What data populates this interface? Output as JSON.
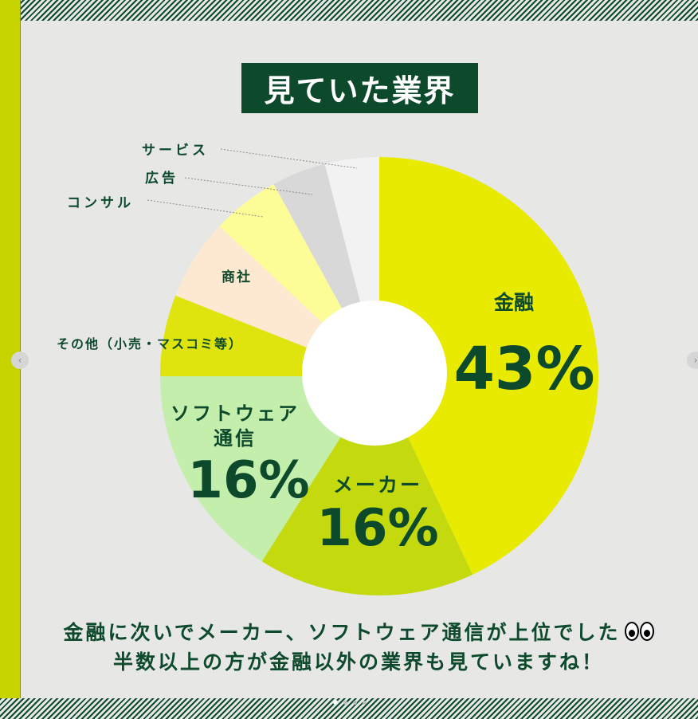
{
  "title": "見ていた業界",
  "chart_data": {
    "type": "pie",
    "title": "見ていた業界",
    "slices": [
      {
        "label": "金融",
        "value": 43,
        "display": "43%",
        "color": "#e8ea00"
      },
      {
        "label": "メーカー",
        "value": 16,
        "display": "16%",
        "color": "#c4da0e"
      },
      {
        "label": "ソフトウェア通信",
        "value": 16,
        "display": "16%",
        "color": "#c4eeac"
      },
      {
        "label": "その他（小売・マスコミ等）",
        "value": 6,
        "display": "",
        "color": "#e0e40e"
      },
      {
        "label": "商社",
        "value": 6,
        "display": "",
        "color": "#fde9d1"
      },
      {
        "label": "コンサル",
        "value": 5,
        "display": "",
        "color": "#fdfd98"
      },
      {
        "label": "広告",
        "value": 4,
        "display": "",
        "color": "#d8d8d8"
      },
      {
        "label": "サービス",
        "value": 4,
        "display": "",
        "color": "#f2f2f2"
      }
    ]
  },
  "labels": {
    "finance": "金融",
    "finance_pct": "43%",
    "maker": "メーカー",
    "maker_pct": "16%",
    "software_line1": "ソフトウェア",
    "software_line2": "通信",
    "software_pct": "16%",
    "other": "その他（小売・マスコミ等）",
    "trading": "商社",
    "consulting": "コンサル",
    "advertising": "広告",
    "service": "サービス"
  },
  "caption": {
    "line1": "金融に次いでメーカー、ソフトウェア通信が上位でした",
    "line2": "半数以上の方が金融以外の業界も見ていますね！"
  },
  "colors": {
    "dark_green": "#0d4a2c",
    "lime": "#c8d400",
    "background": "#e7e7e6"
  }
}
